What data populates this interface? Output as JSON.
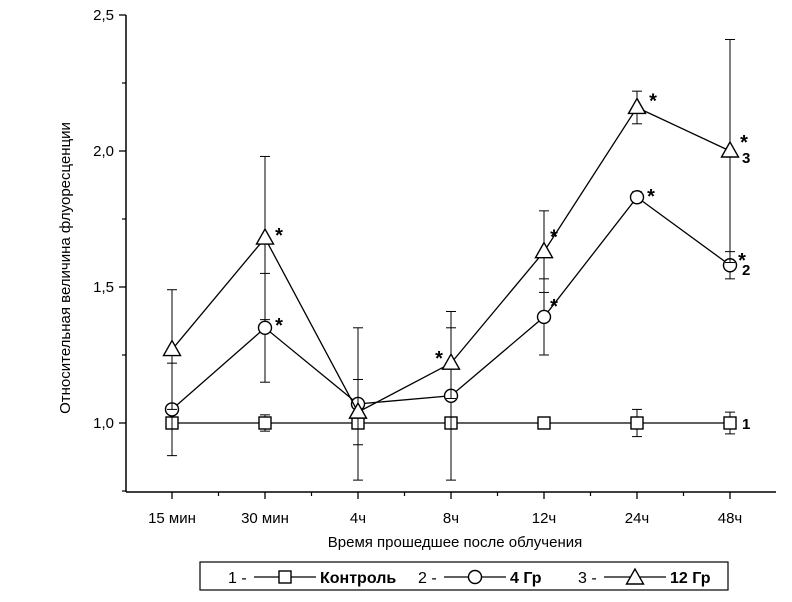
{
  "chart_data": {
    "type": "line",
    "xlabel": "Время прошедшее после облучения",
    "ylabel": "Относительная величина флуоресценции",
    "categories": [
      "15 мин",
      "30 мин",
      "4ч",
      "8ч",
      "12ч",
      "24ч",
      "48ч"
    ],
    "ylim": [
      0.75,
      2.5
    ],
    "yticks": [
      "1,0",
      "1,5",
      "2,0",
      "2,5"
    ],
    "ytick_values": [
      1.0,
      1.5,
      2.0,
      2.5
    ],
    "grid": false,
    "legend_position": "bottom",
    "series": [
      {
        "name": "Контроль",
        "legend_number": "1 -",
        "end_label": "1",
        "marker": "square",
        "values": [
          1.0,
          1.0,
          1.0,
          1.0,
          1.0,
          1.0,
          1.0
        ],
        "error": [
          0.0,
          0.03,
          0.0,
          0.0,
          0.0,
          0.05,
          0.04
        ],
        "significant": [
          false,
          false,
          false,
          false,
          false,
          false,
          false
        ]
      },
      {
        "name": "4 Гр",
        "legend_number": "2 -",
        "end_label": "2",
        "marker": "circle",
        "values": [
          1.05,
          1.35,
          1.07,
          1.1,
          1.39,
          1.83,
          1.58
        ],
        "error": [
          0.17,
          0.2,
          0.28,
          0.31,
          0.14,
          0.02,
          0.05
        ],
        "significant": [
          false,
          true,
          false,
          false,
          true,
          true,
          true
        ]
      },
      {
        "name": "12 Гр",
        "legend_number": "3 -",
        "end_label": "3",
        "marker": "triangle",
        "values": [
          1.27,
          1.68,
          1.04,
          1.22,
          1.63,
          2.16,
          2.0
        ],
        "error": [
          0.22,
          0.3,
          0.12,
          0.13,
          0.15,
          0.06,
          0.41
        ],
        "significant": [
          false,
          true,
          false,
          true,
          true,
          true,
          true
        ]
      }
    ],
    "significance_mark": "*"
  }
}
